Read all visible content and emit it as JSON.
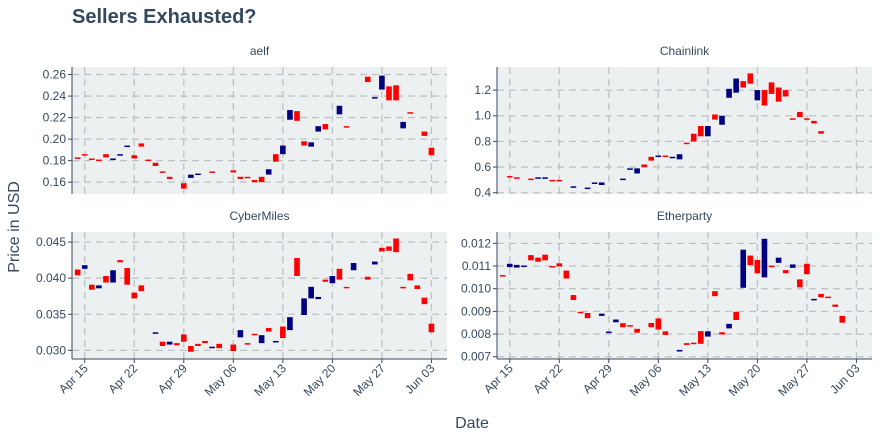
{
  "title": "Sellers Exhausted?",
  "colors": {
    "up": "#000080",
    "down": "#ff0000",
    "panel_bg": "#ecf0f1",
    "grid": "#bdc3c7",
    "text": "#34495e"
  },
  "chart_data": [
    {
      "type": "candlestick",
      "panel": "aelf",
      "ylabel": "Price in USD",
      "xlabel": "Date",
      "x_ticks": [
        "Apr 15",
        "Apr 22",
        "Apr 29",
        "May 06",
        "May 13",
        "May 20",
        "May 27",
        "Jun 03"
      ],
      "y_ticks": [
        "0.16",
        "0.18",
        "0.20",
        "0.22",
        "0.24",
        "0.26"
      ],
      "ylim": [
        0.149,
        0.267
      ],
      "candles": [
        {
          "date": "Apr 14",
          "open": 0.183,
          "close": 0.182
        },
        {
          "date": "Apr 15",
          "open": 0.186,
          "close": 0.185
        },
        {
          "date": "Apr 16",
          "open": 0.182,
          "close": 0.181
        },
        {
          "date": "Apr 17",
          "open": 0.181,
          "close": 0.18
        },
        {
          "date": "Apr 18",
          "open": 0.186,
          "close": 0.183
        },
        {
          "date": "Apr 19",
          "open": 0.181,
          "close": 0.182
        },
        {
          "date": "Apr 20",
          "open": 0.185,
          "close": 0.186
        },
        {
          "date": "Apr 21",
          "open": 0.193,
          "close": 0.194
        },
        {
          "date": "Apr 22",
          "open": 0.185,
          "close": 0.182
        },
        {
          "date": "Apr 23",
          "open": 0.196,
          "close": 0.193
        },
        {
          "date": "Apr 24",
          "open": 0.181,
          "close": 0.18
        },
        {
          "date": "Apr 25",
          "open": 0.178,
          "close": 0.175
        },
        {
          "date": "Apr 26",
          "open": 0.17,
          "close": 0.169
        },
        {
          "date": "Apr 27",
          "open": 0.165,
          "close": 0.163
        },
        {
          "date": "Apr 29",
          "open": 0.159,
          "close": 0.154
        },
        {
          "date": "Apr 30",
          "open": 0.164,
          "close": 0.167
        },
        {
          "date": "May 01",
          "open": 0.167,
          "close": 0.168
        },
        {
          "date": "May 03",
          "open": 0.17,
          "close": 0.169
        },
        {
          "date": "May 06",
          "open": 0.171,
          "close": 0.169
        },
        {
          "date": "May 07",
          "open": 0.165,
          "close": 0.163
        },
        {
          "date": "May 08",
          "open": 0.165,
          "close": 0.164
        },
        {
          "date": "May 09",
          "open": 0.162,
          "close": 0.16
        },
        {
          "date": "May 10",
          "open": 0.165,
          "close": 0.16
        },
        {
          "date": "May 11",
          "open": 0.167,
          "close": 0.172
        },
        {
          "date": "May 12",
          "open": 0.186,
          "close": 0.179
        },
        {
          "date": "May 13",
          "open": 0.186,
          "close": 0.194
        },
        {
          "date": "May 14",
          "open": 0.218,
          "close": 0.227
        },
        {
          "date": "May 15",
          "open": 0.226,
          "close": 0.217
        },
        {
          "date": "May 16",
          "open": 0.198,
          "close": 0.194
        },
        {
          "date": "May 17",
          "open": 0.193,
          "close": 0.197
        },
        {
          "date": "May 18",
          "open": 0.207,
          "close": 0.212
        },
        {
          "date": "May 19",
          "open": 0.214,
          "close": 0.209
        },
        {
          "date": "May 21",
          "open": 0.223,
          "close": 0.231
        },
        {
          "date": "May 22",
          "open": 0.212,
          "close": 0.211
        },
        {
          "date": "May 25",
          "open": 0.258,
          "close": 0.253
        },
        {
          "date": "May 26",
          "open": 0.238,
          "close": 0.239
        },
        {
          "date": "May 27",
          "open": 0.246,
          "close": 0.259
        },
        {
          "date": "May 28",
          "open": 0.249,
          "close": 0.236
        },
        {
          "date": "May 29",
          "open": 0.25,
          "close": 0.236
        },
        {
          "date": "May 30",
          "open": 0.21,
          "close": 0.216
        },
        {
          "date": "May 31",
          "open": 0.225,
          "close": 0.224
        },
        {
          "date": "Jun 02",
          "open": 0.207,
          "close": 0.203
        },
        {
          "date": "Jun 03",
          "open": 0.192,
          "close": 0.185
        }
      ]
    },
    {
      "type": "candlestick",
      "panel": "Chainlink",
      "x_ticks": [
        "Apr 15",
        "Apr 22",
        "Apr 29",
        "May 06",
        "May 13",
        "May 20",
        "May 27",
        "Jun 03"
      ],
      "y_ticks": [
        "0.4",
        "0.6",
        "0.8",
        "1.0",
        "1.2"
      ],
      "ylim": [
        0.39,
        1.38
      ],
      "candles": [
        {
          "date": "Apr 15",
          "open": 0.53,
          "close": 0.52
        },
        {
          "date": "Apr 16",
          "open": 0.52,
          "close": 0.51
        },
        {
          "date": "Apr 18",
          "open": 0.51,
          "close": 0.5
        },
        {
          "date": "Apr 19",
          "open": 0.51,
          "close": 0.52
        },
        {
          "date": "Apr 20",
          "open": 0.51,
          "close": 0.52
        },
        {
          "date": "Apr 21",
          "open": 0.5,
          "close": 0.49
        },
        {
          "date": "Apr 22",
          "open": 0.5,
          "close": 0.49
        },
        {
          "date": "Apr 24",
          "open": 0.44,
          "close": 0.45
        },
        {
          "date": "Apr 26",
          "open": 0.43,
          "close": 0.44
        },
        {
          "date": "Apr 27",
          "open": 0.47,
          "close": 0.48
        },
        {
          "date": "Apr 28",
          "open": 0.46,
          "close": 0.48
        },
        {
          "date": "May 01",
          "open": 0.5,
          "close": 0.51
        },
        {
          "date": "May 02",
          "open": 0.58,
          "close": 0.59
        },
        {
          "date": "May 03",
          "open": 0.55,
          "close": 0.59
        },
        {
          "date": "May 04",
          "open": 0.62,
          "close": 0.6
        },
        {
          "date": "May 05",
          "open": 0.68,
          "close": 0.65
        },
        {
          "date": "May 06",
          "open": 0.68,
          "close": 0.69
        },
        {
          "date": "May 07",
          "open": 0.69,
          "close": 0.68
        },
        {
          "date": "May 08",
          "open": 0.67,
          "close": 0.68
        },
        {
          "date": "May 09",
          "open": 0.66,
          "close": 0.7
        },
        {
          "date": "May 10",
          "open": 0.79,
          "close": 0.78
        },
        {
          "date": "May 11",
          "open": 0.86,
          "close": 0.8
        },
        {
          "date": "May 12",
          "open": 0.92,
          "close": 0.84
        },
        {
          "date": "May 13",
          "open": 0.84,
          "close": 0.92
        },
        {
          "date": "May 14",
          "open": 1.01,
          "close": 0.97
        },
        {
          "date": "May 15",
          "open": 0.93,
          "close": 1.0
        },
        {
          "date": "May 16",
          "open": 1.14,
          "close": 1.21
        },
        {
          "date": "May 17",
          "open": 1.18,
          "close": 1.29
        },
        {
          "date": "May 18",
          "open": 1.27,
          "close": 1.22
        },
        {
          "date": "May 19",
          "open": 1.33,
          "close": 1.25
        },
        {
          "date": "May 20",
          "open": 1.12,
          "close": 1.2
        },
        {
          "date": "May 21",
          "open": 1.2,
          "close": 1.08
        },
        {
          "date": "May 22",
          "open": 1.26,
          "close": 1.17
        },
        {
          "date": "May 23",
          "open": 1.22,
          "close": 1.11
        },
        {
          "date": "May 24",
          "open": 1.2,
          "close": 1.15
        },
        {
          "date": "May 25",
          "open": 0.98,
          "close": 0.97
        },
        {
          "date": "May 26",
          "open": 1.03,
          "close": 0.99
        },
        {
          "date": "May 27",
          "open": 0.98,
          "close": 0.97
        },
        {
          "date": "May 28",
          "open": 0.96,
          "close": 0.94
        },
        {
          "date": "May 29",
          "open": 0.88,
          "close": 0.86
        }
      ]
    },
    {
      "type": "candlestick",
      "panel": "CyberMiles",
      "x_ticks": [
        "Apr 15",
        "Apr 22",
        "Apr 29",
        "May 06",
        "May 13",
        "May 20",
        "May 27",
        "Jun 03"
      ],
      "y_ticks": [
        "0.030",
        "0.035",
        "0.040",
        "0.045"
      ],
      "ylim": [
        0.0288,
        0.0464
      ],
      "candles": [
        {
          "date": "Apr 14",
          "open": 0.0412,
          "close": 0.0404
        },
        {
          "date": "Apr 15",
          "open": 0.0413,
          "close": 0.0418
        },
        {
          "date": "Apr 16",
          "open": 0.0391,
          "close": 0.0384
        },
        {
          "date": "Apr 17",
          "open": 0.0386,
          "close": 0.039
        },
        {
          "date": "Apr 18",
          "open": 0.0403,
          "close": 0.0394
        },
        {
          "date": "Apr 19",
          "open": 0.0394,
          "close": 0.0411
        },
        {
          "date": "Apr 20",
          "open": 0.0425,
          "close": 0.0422
        },
        {
          "date": "Apr 21",
          "open": 0.0414,
          "close": 0.0391
        },
        {
          "date": "Apr 22",
          "open": 0.038,
          "close": 0.0372
        },
        {
          "date": "Apr 23",
          "open": 0.039,
          "close": 0.0382
        },
        {
          "date": "Apr 25",
          "open": 0.0324,
          "close": 0.0325
        },
        {
          "date": "Apr 26",
          "open": 0.0312,
          "close": 0.0306
        },
        {
          "date": "Apr 27",
          "open": 0.0308,
          "close": 0.0312
        },
        {
          "date": "Apr 28",
          "open": 0.031,
          "close": 0.0307
        },
        {
          "date": "Apr 29",
          "open": 0.0322,
          "close": 0.0312
        },
        {
          "date": "Apr 30",
          "open": 0.0306,
          "close": 0.0298
        },
        {
          "date": "May 01",
          "open": 0.0309,
          "close": 0.0306
        },
        {
          "date": "May 02",
          "open": 0.0313,
          "close": 0.031
        },
        {
          "date": "May 03",
          "open": 0.0303,
          "close": 0.0305
        },
        {
          "date": "May 04",
          "open": 0.0309,
          "close": 0.0303
        },
        {
          "date": "May 06",
          "open": 0.0308,
          "close": 0.0299
        },
        {
          "date": "May 07",
          "open": 0.0318,
          "close": 0.0328
        },
        {
          "date": "May 08",
          "open": 0.031,
          "close": 0.0309
        },
        {
          "date": "May 09",
          "open": 0.0323,
          "close": 0.0321
        },
        {
          "date": "May 10",
          "open": 0.031,
          "close": 0.0321
        },
        {
          "date": "May 11",
          "open": 0.0331,
          "close": 0.0326
        },
        {
          "date": "May 12",
          "open": 0.0311,
          "close": 0.0313
        },
        {
          "date": "May 13",
          "open": 0.0333,
          "close": 0.0317
        },
        {
          "date": "May 14",
          "open": 0.0328,
          "close": 0.0346
        },
        {
          "date": "May 15",
          "open": 0.0428,
          "close": 0.0403
        },
        {
          "date": "May 16",
          "open": 0.0349,
          "close": 0.0372
        },
        {
          "date": "May 17",
          "open": 0.0372,
          "close": 0.0388
        },
        {
          "date": "May 18",
          "open": 0.0371,
          "close": 0.0374
        },
        {
          "date": "May 19",
          "open": 0.0398,
          "close": 0.0395
        },
        {
          "date": "May 20",
          "open": 0.0393,
          "close": 0.0403
        },
        {
          "date": "May 21",
          "open": 0.0413,
          "close": 0.0398
        },
        {
          "date": "May 22",
          "open": 0.0388,
          "close": 0.0387
        },
        {
          "date": "May 23",
          "open": 0.0411,
          "close": 0.0421
        },
        {
          "date": "May 25",
          "open": 0.0402,
          "close": 0.0398
        },
        {
          "date": "May 26",
          "open": 0.0419,
          "close": 0.0423
        },
        {
          "date": "May 27",
          "open": 0.0442,
          "close": 0.0437
        },
        {
          "date": "May 28",
          "open": 0.0444,
          "close": 0.0438
        },
        {
          "date": "May 29",
          "open": 0.0455,
          "close": 0.0436
        },
        {
          "date": "May 30",
          "open": 0.0388,
          "close": 0.0387
        },
        {
          "date": "May 31",
          "open": 0.0406,
          "close": 0.0397
        },
        {
          "date": "Jun 01",
          "open": 0.039,
          "close": 0.0385
        },
        {
          "date": "Jun 02",
          "open": 0.0373,
          "close": 0.0364
        },
        {
          "date": "Jun 03",
          "open": 0.0337,
          "close": 0.0325
        }
      ]
    },
    {
      "type": "candlestick",
      "panel": "Etherparty",
      "x_ticks": [
        "Apr 15",
        "Apr 22",
        "Apr 29",
        "May 06",
        "May 13",
        "May 20",
        "May 27",
        "Jun 03"
      ],
      "y_ticks": [
        "0.007",
        "0.008",
        "0.009",
        "0.010",
        "0.011",
        "0.012"
      ],
      "ylim": [
        0.0069,
        0.0125
      ],
      "candles": [
        {
          "date": "Apr 14",
          "open": 0.0106,
          "close": 0.01057
        },
        {
          "date": "Apr 15",
          "open": 0.01095,
          "close": 0.0111
        },
        {
          "date": "Apr 16",
          "open": 0.01093,
          "close": 0.01105
        },
        {
          "date": "Apr 17",
          "open": 0.01101,
          "close": 0.01102
        },
        {
          "date": "Apr 18",
          "open": 0.01148,
          "close": 0.01125
        },
        {
          "date": "Apr 19",
          "open": 0.01137,
          "close": 0.01119
        },
        {
          "date": "Apr 20",
          "open": 0.0115,
          "close": 0.01125
        },
        {
          "date": "Apr 21",
          "open": 0.011,
          "close": 0.01098
        },
        {
          "date": "Apr 22",
          "open": 0.01112,
          "close": 0.01098
        },
        {
          "date": "Apr 23",
          "open": 0.0108,
          "close": 0.01045
        },
        {
          "date": "Apr 24",
          "open": 0.00972,
          "close": 0.0095
        },
        {
          "date": "Apr 25",
          "open": 0.00898,
          "close": 0.00896
        },
        {
          "date": "Apr 26",
          "open": 0.00893,
          "close": 0.0087
        },
        {
          "date": "Apr 28",
          "open": 0.0088,
          "close": 0.0089
        },
        {
          "date": "Apr 29",
          "open": 0.0081,
          "close": 0.00811
        },
        {
          "date": "Apr 30",
          "open": 0.00852,
          "close": 0.00864
        },
        {
          "date": "May 01",
          "open": 0.00848,
          "close": 0.0083
        },
        {
          "date": "May 02",
          "open": 0.00839,
          "close": 0.00835
        },
        {
          "date": "May 03",
          "open": 0.00823,
          "close": 0.00806
        },
        {
          "date": "May 05",
          "open": 0.00849,
          "close": 0.0083
        },
        {
          "date": "May 06",
          "open": 0.00869,
          "close": 0.0082
        },
        {
          "date": "May 07",
          "open": 0.00812,
          "close": 0.00796
        },
        {
          "date": "May 09",
          "open": 0.00723,
          "close": 0.0073
        },
        {
          "date": "May 10",
          "open": 0.0076,
          "close": 0.00752
        },
        {
          "date": "May 11",
          "open": 0.00762,
          "close": 0.0076
        },
        {
          "date": "May 12",
          "open": 0.00813,
          "close": 0.00757
        },
        {
          "date": "May 13",
          "open": 0.00789,
          "close": 0.00812
        },
        {
          "date": "May 14",
          "open": 0.00989,
          "close": 0.00967
        },
        {
          "date": "May 15",
          "open": 0.00808,
          "close": 0.00798
        },
        {
          "date": "May 16",
          "open": 0.00825,
          "close": 0.00845
        },
        {
          "date": "May 17",
          "open": 0.00898,
          "close": 0.00862
        },
        {
          "date": "May 18",
          "open": 0.01004,
          "close": 0.01172
        },
        {
          "date": "May 19",
          "open": 0.01146,
          "close": 0.01104
        },
        {
          "date": "May 20",
          "open": 0.01127,
          "close": 0.01068
        },
        {
          "date": "May 21",
          "open": 0.0105,
          "close": 0.0122
        },
        {
          "date": "May 22",
          "open": 0.01102,
          "close": 0.01095
        },
        {
          "date": "May 23",
          "open": 0.01114,
          "close": 0.01137
        },
        {
          "date": "May 24",
          "open": 0.01082,
          "close": 0.01068
        },
        {
          "date": "May 25",
          "open": 0.01092,
          "close": 0.01107
        },
        {
          "date": "May 26",
          "open": 0.01041,
          "close": 0.01006
        },
        {
          "date": "May 27",
          "open": 0.0111,
          "close": 0.01064
        },
        {
          "date": "May 28",
          "open": 0.0095,
          "close": 0.00955
        },
        {
          "date": "May 29",
          "open": 0.00977,
          "close": 0.00962
        },
        {
          "date": "May 30",
          "open": 0.00965,
          "close": 0.0096
        },
        {
          "date": "May 31",
          "open": 0.0093,
          "close": 0.0092
        },
        {
          "date": "Jun 01",
          "open": 0.0088,
          "close": 0.0085
        }
      ]
    }
  ]
}
